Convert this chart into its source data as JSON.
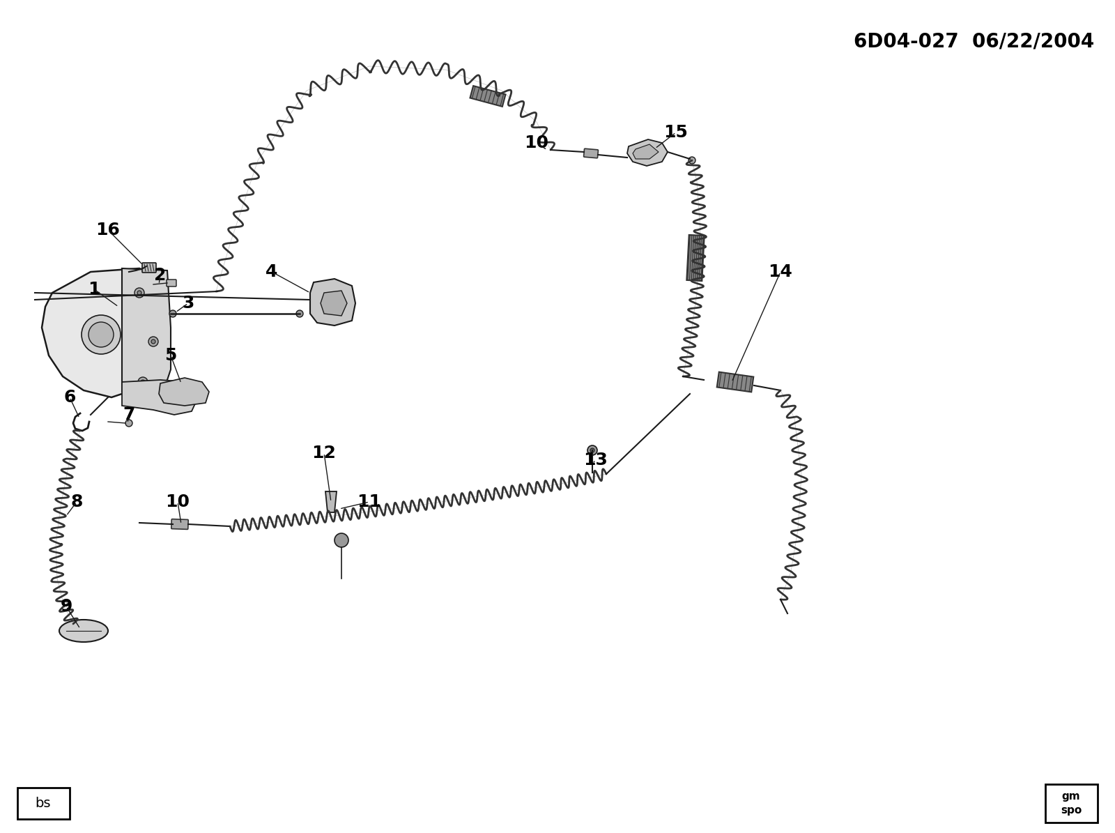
{
  "fig_width": 16.0,
  "fig_height": 11.95,
  "dpi": 100,
  "bg_color": "#ffffff",
  "lc": "#1a1a1a",
  "header": "6D04-027  06/22/2004",
  "bs_label": "bs",
  "labels": [
    [
      "1",
      135,
      415
    ],
    [
      "2",
      230,
      395
    ],
    [
      "3",
      270,
      435
    ],
    [
      "4",
      390,
      390
    ],
    [
      "5",
      245,
      510
    ],
    [
      "6",
      100,
      570
    ],
    [
      "7",
      185,
      595
    ],
    [
      "8",
      110,
      720
    ],
    [
      "9",
      95,
      870
    ],
    [
      "10",
      255,
      720
    ],
    [
      "10",
      770,
      205
    ],
    [
      "11",
      530,
      720
    ],
    [
      "12",
      465,
      650
    ],
    [
      "13",
      855,
      660
    ],
    [
      "14",
      1120,
      390
    ],
    [
      "15",
      970,
      190
    ],
    [
      "16",
      155,
      330
    ]
  ],
  "cable_color": "#333333",
  "thin_line_color": "#555555"
}
